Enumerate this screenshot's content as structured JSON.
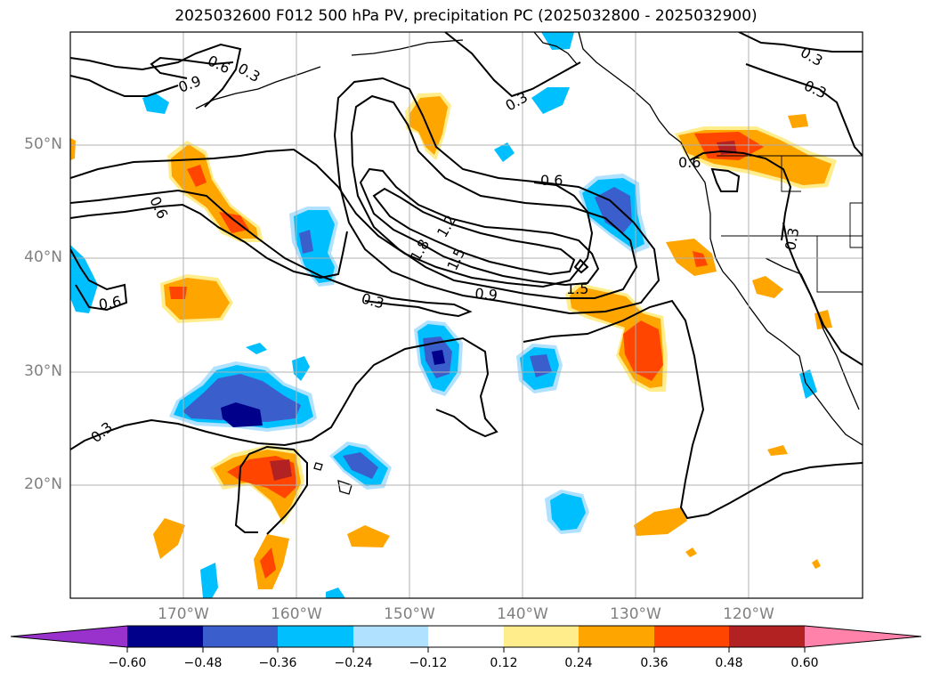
{
  "title": "2025032600 F012 500 hPa PV, precipitation PC (2025032800 - 2025032900)",
  "map": {
    "lat_labels": [
      "50°N",
      "40°N",
      "30°N",
      "20°N"
    ],
    "lon_labels": [
      "170°W",
      "160°W",
      "150°W",
      "140°W",
      "130°W",
      "120°W"
    ],
    "gridlines": true
  },
  "contours": {
    "labels": [
      "0.6",
      "0.3",
      "0.9",
      "0.6",
      "0.6",
      "0.3",
      "1.8",
      "1.2",
      "1.5",
      "0.3",
      "0.9",
      "0.6",
      "1.5",
      "0.3",
      "0.3",
      "0.3",
      "0.3",
      "0.6"
    ]
  },
  "colorbar": {
    "ticks": [
      "−0.60",
      "−0.48",
      "−0.36",
      "−0.24",
      "−0.12",
      "0.12",
      "0.24",
      "0.36",
      "0.48",
      "0.60"
    ],
    "colors": [
      "#9932cc",
      "#00008b",
      "#3a5fcd",
      "#00bfff",
      "#b0e2ff",
      "#ffffff",
      "#ffec8b",
      "#ffa500",
      "#ff4500",
      "#b22222",
      "#ff82ab"
    ]
  }
}
